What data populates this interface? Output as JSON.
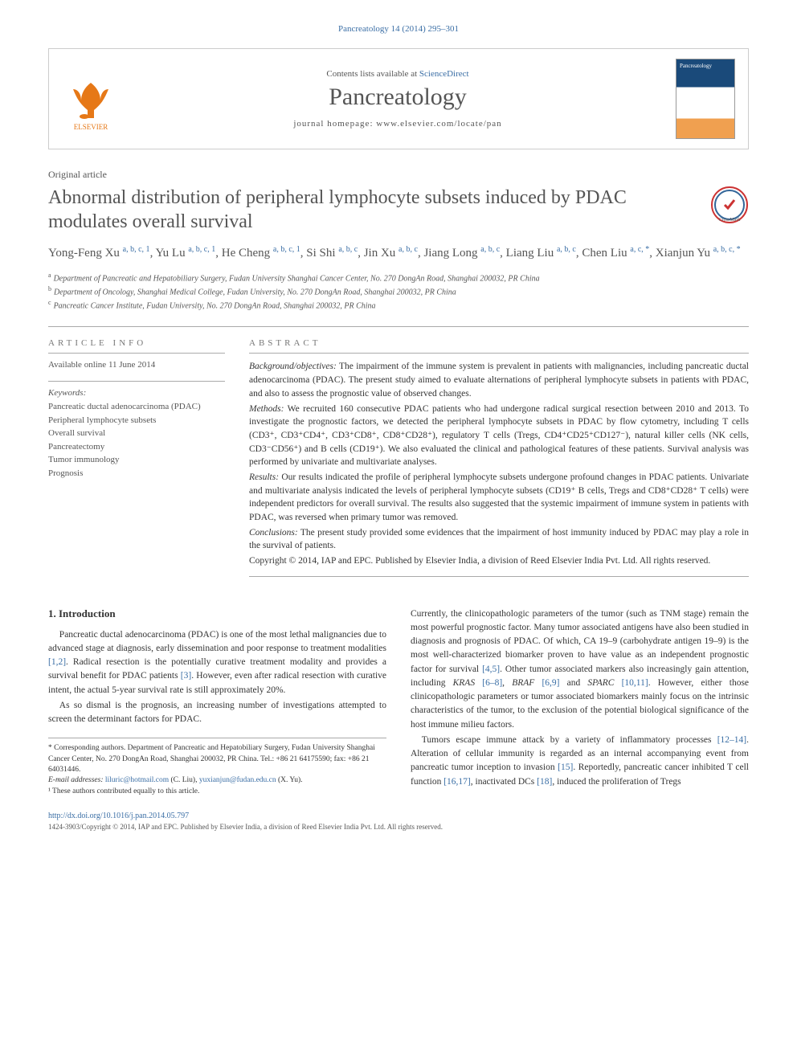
{
  "citation": {
    "journal_short": "Pancreatology",
    "vol_pages": "14 (2014) 295–301"
  },
  "header": {
    "contents_prefix": "Contents lists available at ",
    "contents_link": "ScienceDirect",
    "journal_name": "Pancreatology",
    "homepage_prefix": "journal homepage: ",
    "homepage_url": "www.elsevier.com/locate/pan",
    "publisher_name": "ELSEVIER",
    "publisher_color": "#e67817"
  },
  "article_type": "Original article",
  "title": "Abnormal distribution of peripheral lymphocyte subsets induced by PDAC modulates overall survival",
  "crossmark_label": "CrossMark",
  "authors_line": "Yong-Feng Xu <sup>a, b, c, 1</sup>, Yu Lu <sup>a, b, c, 1</sup>, He Cheng <sup>a, b, c, 1</sup>, Si Shi <sup>a, b, c</sup>, Jin Xu <sup>a, b, c</sup>, Jiang Long <sup>a, b, c</sup>, Liang Liu <sup>a, b, c</sup>, Chen Liu <sup>a, c, *</sup>, Xianjun Yu <sup>a, b, c, *</sup>",
  "affiliations": {
    "a": "Department of Pancreatic and Hepatobiliary Surgery, Fudan University Shanghai Cancer Center, No. 270 DongAn Road, Shanghai 200032, PR China",
    "b": "Department of Oncology, Shanghai Medical College, Fudan University, No. 270 DongAn Road, Shanghai 200032, PR China",
    "c": "Pancreatic Cancer Institute, Fudan University, No. 270 DongAn Road, Shanghai 200032, PR China"
  },
  "article_info": {
    "heading": "ARTICLE INFO",
    "online_label": "Available online 11 June 2014",
    "keywords_heading": "Keywords:",
    "keywords": [
      "Pancreatic ductal adenocarcinoma (PDAC)",
      "Peripheral lymphocyte subsets",
      "Overall survival",
      "Pancreatectomy",
      "Tumor immunology",
      "Prognosis"
    ]
  },
  "abstract": {
    "heading": "ABSTRACT",
    "background_label": "Background/objectives:",
    "background_text": " The impairment of the immune system is prevalent in patients with malignancies, including pancreatic ductal adenocarcinoma (PDAC). The present study aimed to evaluate alternations of peripheral lymphocyte subsets in patients with PDAC, and also to assess the prognostic value of observed changes.",
    "methods_label": "Methods:",
    "methods_text": " We recruited 160 consecutive PDAC patients who had undergone radical surgical resection between 2010 and 2013. To investigate the prognostic factors, we detected the peripheral lymphocyte subsets in PDAC by flow cytometry, including T cells (CD3⁺, CD3⁺CD4⁺, CD3⁺CD8⁺, CD8⁺CD28⁺), regulatory T cells (Tregs, CD4⁺CD25⁺CD127⁻), natural killer cells (NK cells, CD3⁻CD56⁺) and B cells (CD19⁺). We also evaluated the clinical and pathological features of these patients. Survival analysis was performed by univariate and multivariate analyses.",
    "results_label": "Results:",
    "results_text": " Our results indicated the profile of peripheral lymphocyte subsets undergone profound changes in PDAC patients. Univariate and multivariate analysis indicated the levels of peripheral lymphocyte subsets (CD19⁺ B cells, Tregs and CD8⁺CD28⁺ T cells) were independent predictors for overall survival. The results also suggested that the systemic impairment of immune system in patients with PDAC, was reversed when primary tumor was removed.",
    "conclusions_label": "Conclusions:",
    "conclusions_text": " The present study provided some evidences that the impairment of host immunity induced by PDAC may play a role in the survival of patients.",
    "copyright": "Copyright © 2014, IAP and EPC. Published by Elsevier India, a division of Reed Elsevier India Pvt. Ltd. All rights reserved."
  },
  "body": {
    "section1_heading": "1. Introduction",
    "col1_p1": "Pancreatic ductal adenocarcinoma (PDAC) is one of the most lethal malignancies due to advanced stage at diagnosis, early dissemination and poor response to treatment modalities [1,2]. Radical resection is the potentially curative treatment modality and provides a survival benefit for PDAC patients [3]. However, even after radical resection with curative intent, the actual 5-year survival rate is still approximately 20%.",
    "col1_p2": "As so dismal is the prognosis, an increasing number of investigations attempted to screen the determinant factors for PDAC.",
    "col2_p1": "Currently, the clinicopathologic parameters of the tumor (such as TNM stage) remain the most powerful prognostic factor. Many tumor associated antigens have also been studied in diagnosis and prognosis of PDAC. Of which, CA 19–9 (carbohydrate antigen 19–9) is the most well-characterized biomarker proven to have value as an independent prognostic factor for survival [4,5]. Other tumor associated markers also increasingly gain attention, including KRAS [6–8], BRAF [6,9] and SPARC [10,11]. However, either those clinicopathologic parameters or tumor associated biomarkers mainly focus on the intrinsic characteristics of the tumor, to the exclusion of the potential biological significance of the host immune milieu factors.",
    "col2_p2": "Tumors escape immune attack by a variety of inflammatory processes [12–14]. Alteration of cellular immunity is regarded as an internal accompanying event from pancreatic tumor inception to invasion [15]. Reportedly, pancreatic cancer inhibited T cell function [16,17], inactivated DCs [18], induced the proliferation of Tregs"
  },
  "footnotes": {
    "corresponding": "* Corresponding authors. Department of Pancreatic and Hepatobiliary Surgery, Fudan University Shanghai Cancer Center, No. 270 DongAn Road, Shanghai 200032, PR China. Tel.: +86 21 64175590; fax: +86 21 64031446.",
    "email_label": "E-mail addresses:",
    "email1": "liluric@hotmail.com",
    "email1_name": " (C. Liu), ",
    "email2": "yuxianjun@fudan.edu.cn",
    "email2_name": " (X. Yu).",
    "equal": "¹ These authors contributed equally to this article."
  },
  "footer": {
    "doi_url": "http://dx.doi.org/10.1016/j.pan.2014.05.797",
    "copyright_line": "1424-3903/Copyright © 2014, IAP and EPC. Published by Elsevier India, a division of Reed Elsevier India Pvt. Ltd. All rights reserved."
  },
  "colors": {
    "link": "#3a6ea5",
    "elsevier": "#e67817",
    "text": "#333333",
    "muted": "#555555",
    "border": "#aaaaaa"
  },
  "typography": {
    "title_fontsize": 24,
    "journal_fontsize": 30,
    "body_fontsize": 11.5,
    "small_fontsize": 10
  }
}
